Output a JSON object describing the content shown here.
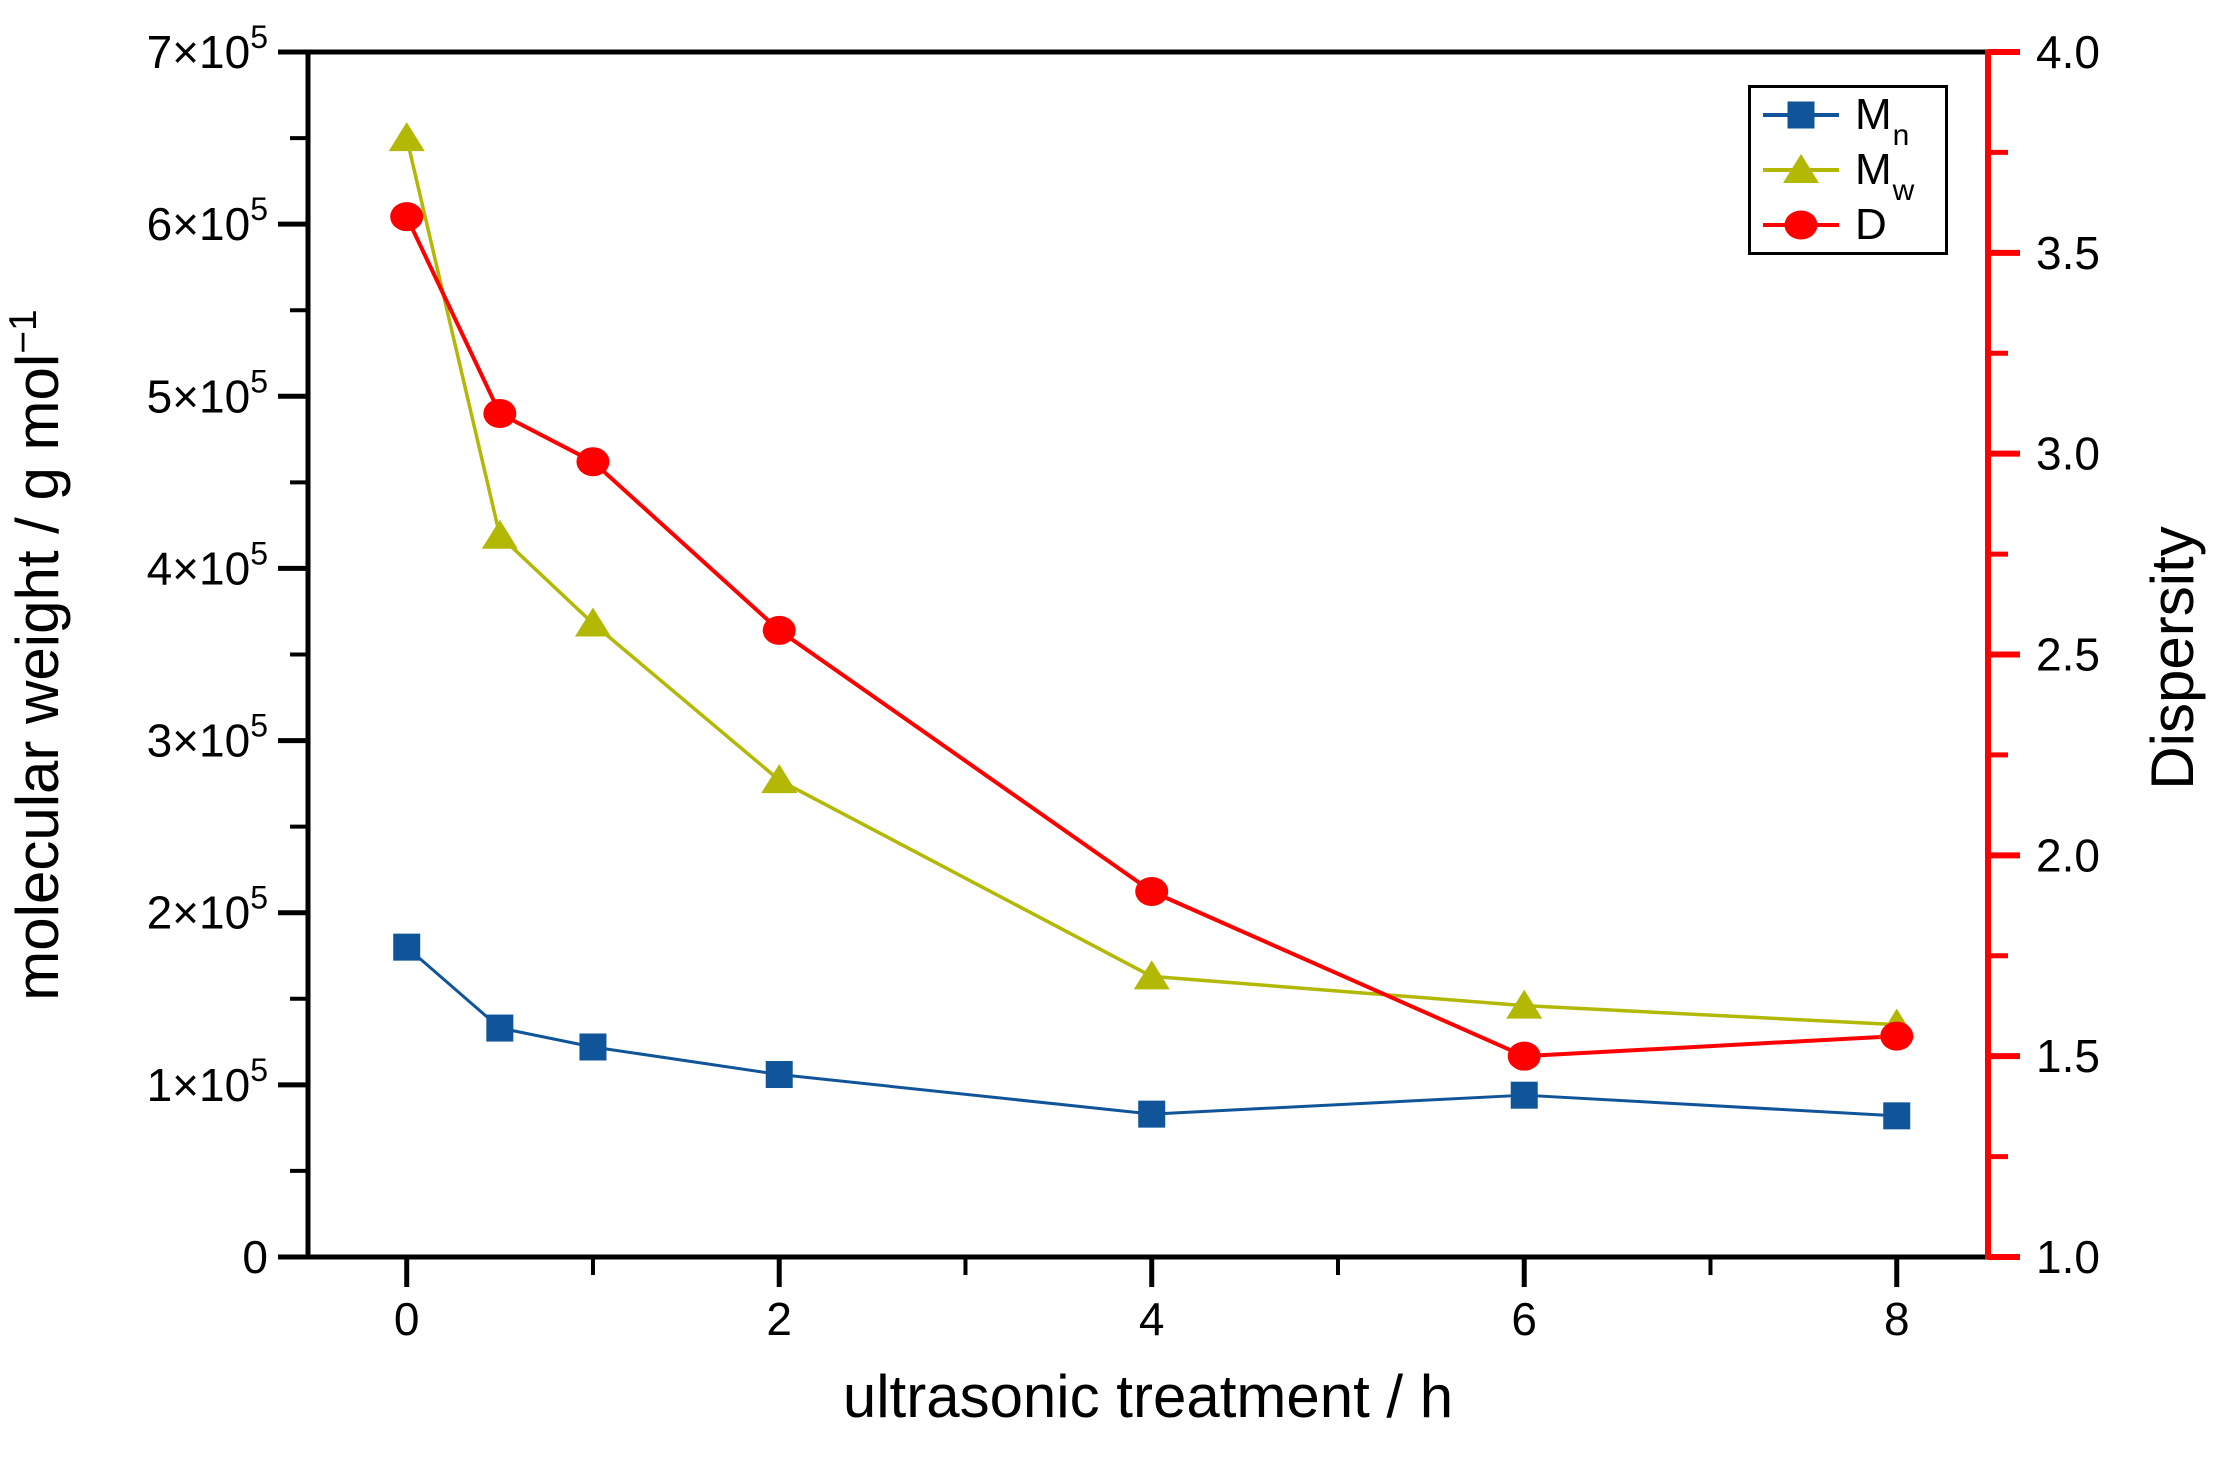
{
  "chart_data": {
    "type": "line",
    "title": "",
    "xlabel": "ultrasonic treatment / h",
    "x": [
      0,
      0.5,
      1,
      2,
      4,
      6,
      8
    ],
    "series": [
      {
        "name": "Mn",
        "label_main": "M",
        "label_sub": "n",
        "axis": "left",
        "color": "#105499",
        "marker": "square",
        "values": [
          180000,
          133000,
          122000,
          106000,
          83000,
          94000,
          82000
        ]
      },
      {
        "name": "Mw",
        "label_main": "M",
        "label_sub": "w",
        "axis": "left",
        "color": "#B2B804",
        "marker": "triangle",
        "values": [
          650000,
          419000,
          368000,
          277000,
          163000,
          146000,
          135000
        ]
      },
      {
        "name": "D",
        "label_main": "D",
        "label_sub": "",
        "axis": "right",
        "color": "#FF0000",
        "marker": "circle",
        "values": [
          3.59,
          3.1,
          2.98,
          2.56,
          1.91,
          1.5,
          1.55
        ]
      }
    ],
    "axes": {
      "x": {
        "title": "ultrasonic treatment / h",
        "range": [
          -0.53,
          8.49
        ],
        "major": [
          {
            "v": 0,
            "label": "0"
          },
          {
            "v": 2,
            "label": "2"
          },
          {
            "v": 4,
            "label": "4"
          },
          {
            "v": 6,
            "label": "6"
          },
          {
            "v": 8,
            "label": "8"
          }
        ],
        "minor": [
          1,
          3,
          5,
          7
        ]
      },
      "left": {
        "title_main": "molecular weight / g mol",
        "title_sup": "−1",
        "range": [
          0,
          700000
        ],
        "major": [
          {
            "v": 0,
            "label": "0",
            "sup": ""
          },
          {
            "v": 100000,
            "label": "1×10",
            "sup": "5"
          },
          {
            "v": 200000,
            "label": "2×10",
            "sup": "5"
          },
          {
            "v": 300000,
            "label": "3×10",
            "sup": "5"
          },
          {
            "v": 400000,
            "label": "4×10",
            "sup": "5"
          },
          {
            "v": 500000,
            "label": "5×10",
            "sup": "5"
          },
          {
            "v": 600000,
            "label": "6×10",
            "sup": "5"
          },
          {
            "v": 700000,
            "label": "7×10",
            "sup": "5"
          }
        ],
        "minor": [
          50000,
          150000,
          250000,
          350000,
          450000,
          550000,
          650000
        ],
        "color": "#000000"
      },
      "right": {
        "title": "Dispersity",
        "range": [
          1.0,
          4.0
        ],
        "major": [
          {
            "v": 1.0,
            "label": "1.0"
          },
          {
            "v": 1.5,
            "label": "1.5"
          },
          {
            "v": 2.0,
            "label": "2.0"
          },
          {
            "v": 2.5,
            "label": "2.5"
          },
          {
            "v": 3.0,
            "label": "3.0"
          },
          {
            "v": 3.5,
            "label": "3.5"
          },
          {
            "v": 4.0,
            "label": "4.0"
          }
        ],
        "minor": [
          1.25,
          1.75,
          2.25,
          2.75,
          3.25,
          3.75
        ],
        "color": "#FF0000"
      }
    },
    "legend": {
      "position": "top-right",
      "border_color": "#000000"
    },
    "grid": "off",
    "background": "#FFFFFF"
  }
}
